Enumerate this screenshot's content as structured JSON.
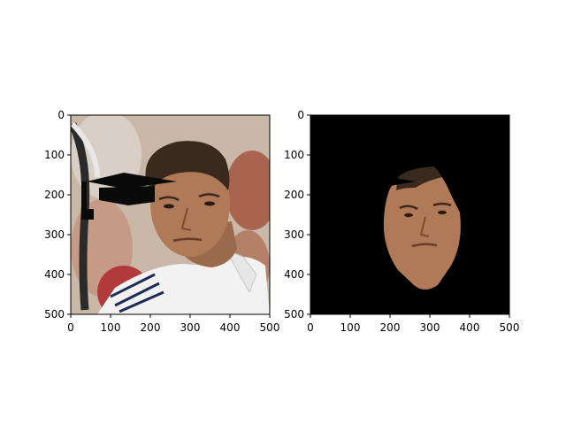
{
  "chart_data": [
    {
      "type": "image",
      "panel": "original-with-cap-overlay",
      "xlim": [
        0,
        500
      ],
      "ylim": [
        500,
        0
      ],
      "xticks": [
        0,
        100,
        200,
        300,
        400,
        500
      ],
      "yticks": [
        0,
        100,
        200,
        300,
        400,
        500
      ],
      "xtick_labels": [
        "0",
        "100",
        "200",
        "300",
        "400",
        "500"
      ],
      "ytick_labels": [
        "0",
        "100",
        "200",
        "300",
        "400",
        "500"
      ],
      "image_content": "photo of a man (tennis player) with a black graduation-cap overlay",
      "title": "",
      "xlabel": "",
      "ylabel": ""
    },
    {
      "type": "image",
      "panel": "face-mask",
      "xlim": [
        0,
        500
      ],
      "ylim": [
        500,
        0
      ],
      "xticks": [
        0,
        100,
        200,
        300,
        400,
        500
      ],
      "yticks": [
        0,
        100,
        200,
        300,
        400,
        500
      ],
      "xtick_labels": [
        "0",
        "100",
        "200",
        "300",
        "400",
        "500"
      ],
      "ytick_labels": [
        "0",
        "100",
        "200",
        "300",
        "400",
        "500"
      ],
      "image_content": "segmented face region on black background",
      "title": "",
      "xlabel": "",
      "ylabel": ""
    }
  ],
  "colors": {
    "background": "#ffffff",
    "axis": "#000000",
    "mask_background": "#000000",
    "skin": "#b07a58",
    "skin_shadow": "#8a5a40",
    "hair": "#3a2a1e",
    "shirt": "#f2f2f2",
    "cap": "#0a0a0a",
    "photo_background": "#c9b7a8"
  }
}
